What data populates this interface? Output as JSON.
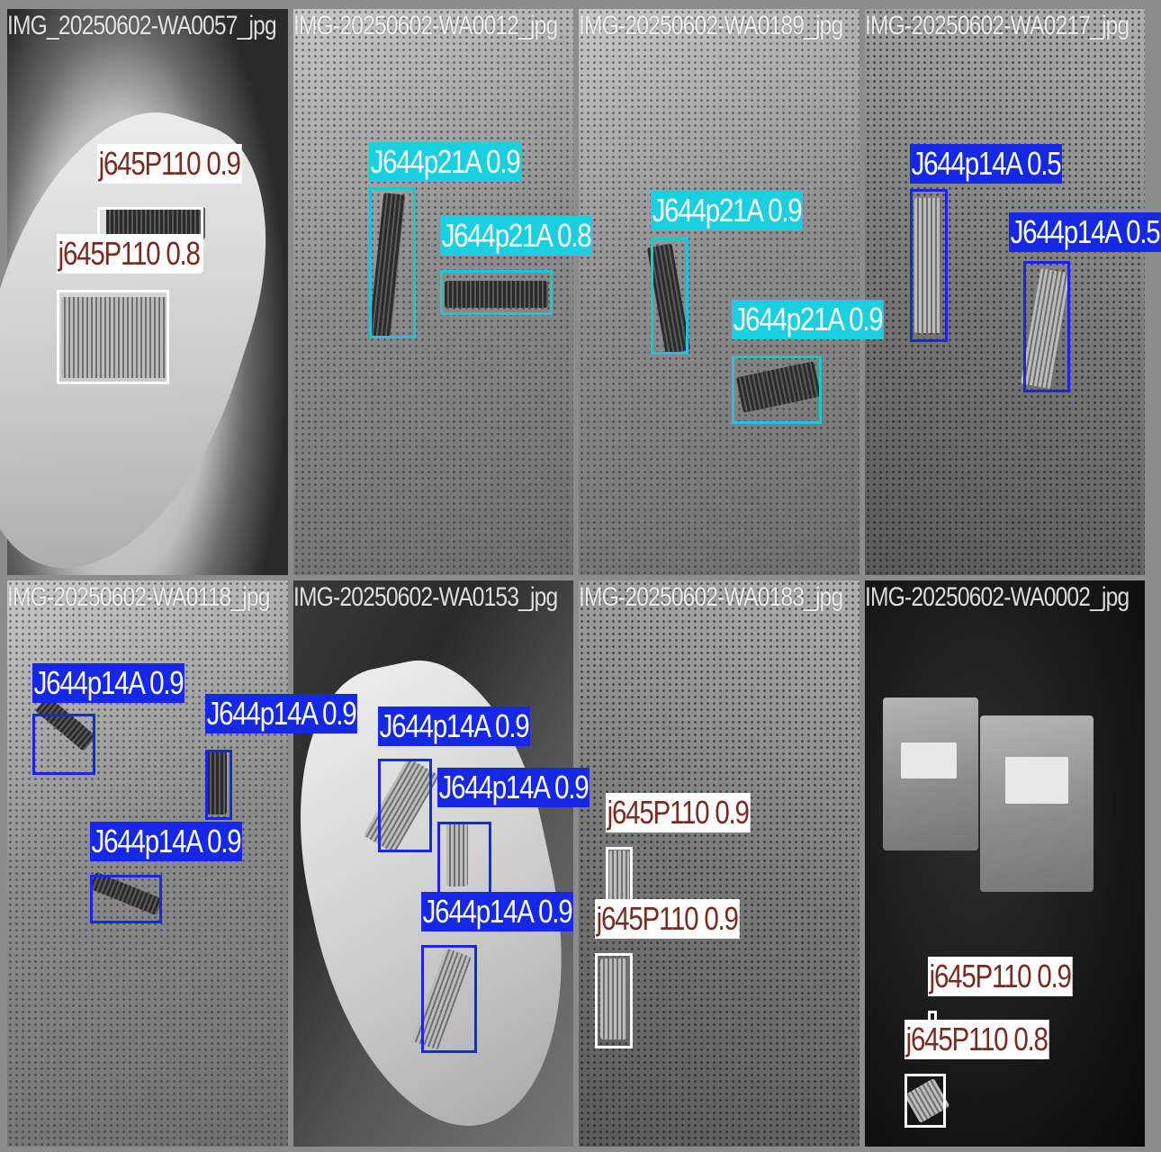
{
  "colors": {
    "j645P110": {
      "box": "#ffffff",
      "label_bg": "#ffffff",
      "label_fg": "#7a2a1f"
    },
    "J644p21A": {
      "box": "#19c8d8",
      "label_bg": "#1ad0e0",
      "label_fg": "#ffffff"
    },
    "J644p14A": {
      "box": "#1428e6",
      "label_bg": "#1428e6",
      "label_fg": "#ffffff"
    }
  },
  "tiles": [
    {
      "filename": "IMG_20250602-WA0057_jpg",
      "detections": [
        {
          "label": "j645P110 0.9",
          "cls": "j645P110"
        },
        {
          "label": "j645P110 0.8",
          "cls": "j645P110"
        }
      ]
    },
    {
      "filename": "IMG-20250602-WA0012_jpg",
      "detections": [
        {
          "label": "J644p21A 0.9",
          "cls": "J644p21A"
        },
        {
          "label": "J644p21A 0.8",
          "cls": "J644p21A"
        }
      ]
    },
    {
      "filename": "IMG-20250602-WA0189_jpg",
      "detections": [
        {
          "label": "J644p21A 0.9",
          "cls": "J644p21A"
        },
        {
          "label": "J644p21A 0.9",
          "cls": "J644p21A"
        }
      ]
    },
    {
      "filename": "IMG-20250602-WA0217_jpg",
      "detections": [
        {
          "label": "J644p14A 0.5",
          "cls": "J644p14A"
        },
        {
          "label": "J644p14A 0.5",
          "cls": "J644p14A"
        }
      ]
    },
    {
      "filename": "IMG-20250602-WA0118_jpg",
      "detections": [
        {
          "label": "J644p14A 0.9",
          "cls": "J644p14A"
        },
        {
          "label": "J644p14A 0.9",
          "cls": "J644p14A"
        },
        {
          "label": "J644p14A 0.9",
          "cls": "J644p14A"
        }
      ]
    },
    {
      "filename": "IMG-20250602-WA0153_jpg",
      "detections": [
        {
          "label": "J644p14A 0.9",
          "cls": "J644p14A"
        },
        {
          "label": "J644p14A 0.9",
          "cls": "J644p14A"
        },
        {
          "label": "J644p14A 0.9",
          "cls": "J644p14A"
        }
      ]
    },
    {
      "filename": "IMG-20250602-WA0183_jpg",
      "detections": [
        {
          "label": "j645P110 0.9",
          "cls": "j645P110"
        },
        {
          "label": "j645P110 0.9",
          "cls": "j645P110"
        }
      ]
    },
    {
      "filename": "IMG-20250602-WA0002_jpg",
      "detections": [
        {
          "label": "j645P110 0.9",
          "cls": "j645P110"
        },
        {
          "label": "j645P110 0.8",
          "cls": "j645P110"
        }
      ]
    }
  ]
}
